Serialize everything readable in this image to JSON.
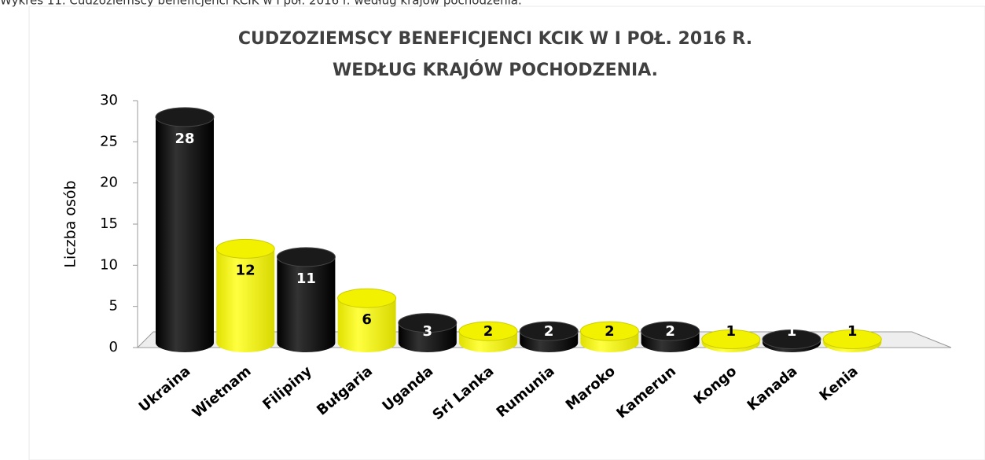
{
  "caption": "Wykres 11. Cudzoziemscy beneficjenci KCIK w I poł. 2016 r. według krajów pochodzenia.",
  "chart_data": {
    "type": "bar3d",
    "title": [
      "CUDZOZIEMSCY BENEFICJENCI KCIK W I POŁ. 2016 R.",
      "WEDŁUG KRAJÓW POCHODZENIA."
    ],
    "ylabel": "Liczba osób",
    "categories": [
      "Ukraina",
      "Wietnam",
      "Filipiny",
      "Bułgaria",
      "Uganda",
      "Sri Lanka",
      "Rumunia",
      "Maroko",
      "Kamerun",
      "Kongo",
      "Kanada",
      "Kenia"
    ],
    "values": [
      28,
      12,
      11,
      6,
      3,
      2,
      2,
      2,
      2,
      1,
      1,
      1
    ],
    "colors": [
      "#000000",
      "#ffff00",
      "#000000",
      "#ffff00",
      "#000000",
      "#ffff00",
      "#000000",
      "#ffff00",
      "#000000",
      "#ffff00",
      "#000000",
      "#ffff00"
    ],
    "ylim": [
      0,
      30
    ],
    "yticks": [
      0,
      5,
      10,
      15,
      20,
      25,
      30
    ]
  }
}
